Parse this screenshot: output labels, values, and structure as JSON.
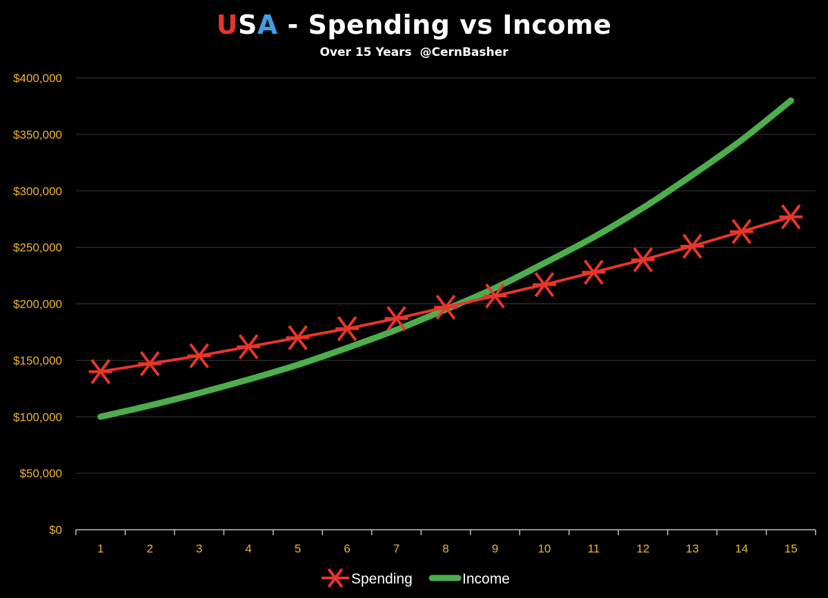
{
  "title": {
    "part_u": "U",
    "part_s": "S",
    "part_a": "A",
    "rest": " - Spending vs Income"
  },
  "subtitle": "Over 15 Years  @CernBasher",
  "colors": {
    "background": "#000000",
    "title_u": "#e8352b",
    "title_s": "#ffffff",
    "title_a": "#3e9fe6",
    "tick_labels": "#f0b432",
    "gridlines": "#3a3a3a",
    "spending": "#e8352b",
    "income": "#4cae4c"
  },
  "chart_data": {
    "type": "line",
    "title": "USA - Spending vs Income",
    "subtitle": "Over 15 Years  @CernBasher",
    "xlabel": "",
    "ylabel": "",
    "categories": [
      "1",
      "2",
      "3",
      "4",
      "5",
      "6",
      "7",
      "8",
      "9",
      "10",
      "11",
      "12",
      "13",
      "14",
      "15"
    ],
    "ylim": [
      0,
      400000
    ],
    "yticks": [
      0,
      50000,
      100000,
      150000,
      200000,
      250000,
      300000,
      350000,
      400000
    ],
    "ytick_labels": [
      "$0",
      "$50,000",
      "$100,000",
      "$150,000",
      "$200,000",
      "$250,000",
      "$300,000",
      "$350,000",
      "$400,000"
    ],
    "grid": true,
    "legend_position": "bottom",
    "series": [
      {
        "name": "Spending",
        "marker": "asterisk",
        "color": "#e8352b",
        "values": [
          140000,
          147000,
          154000,
          162000,
          170000,
          178000,
          187000,
          197000,
          207000,
          217000,
          228000,
          239000,
          251000,
          264000,
          277000
        ]
      },
      {
        "name": "Income",
        "marker": "none",
        "color": "#4cae4c",
        "values": [
          100000,
          110000,
          121000,
          133000,
          146000,
          161000,
          177000,
          195000,
          214000,
          236000,
          259000,
          285000,
          314000,
          345000,
          380000
        ]
      }
    ]
  }
}
